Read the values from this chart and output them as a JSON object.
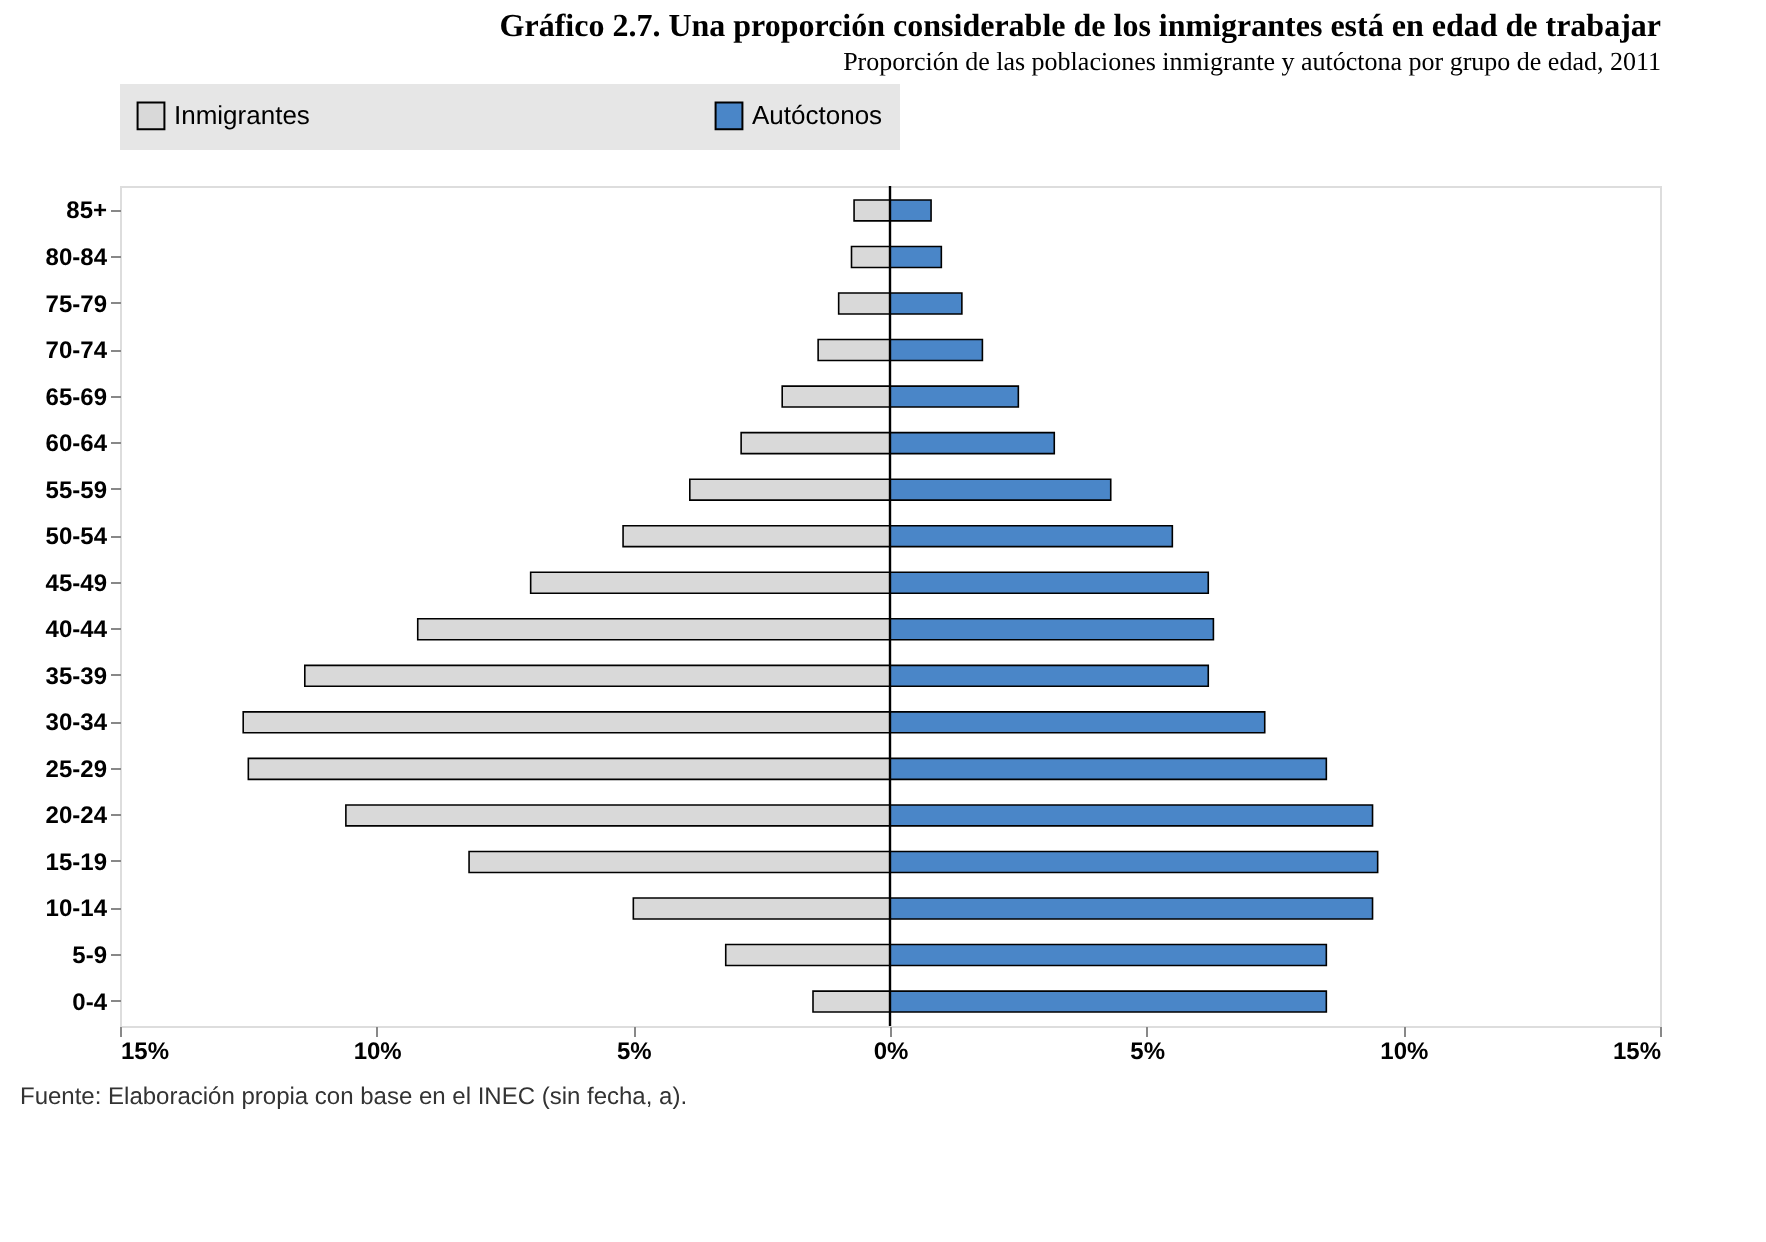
{
  "chart_data": {
    "type": "bar",
    "orientation": "horizontal",
    "stacked": true,
    "title": "Gráfico 2.7. Una proporción considerable de los inmigrantes está en edad de trabajar",
    "subtitle": "Proporción de las poblaciones inmigrante y autóctona por grupo de edad, 2011",
    "categories": [
      "85+",
      "80-84",
      "75-79",
      "70-74",
      "65-69",
      "60-64",
      "55-59",
      "50-54",
      "45-49",
      "40-44",
      "35-39",
      "30-34",
      "25-29",
      "20-24",
      "15-19",
      "10-14",
      "5-9",
      "0-4"
    ],
    "series": [
      {
        "name": "Inmigrantes",
        "color": "#d9d9d9",
        "values": [
          -0.7,
          -0.75,
          -1.0,
          -1.4,
          -2.1,
          -2.9,
          -3.9,
          -5.2,
          -7.0,
          -9.2,
          -11.4,
          -12.6,
          -12.5,
          -10.6,
          -8.2,
          -5.0,
          -3.2,
          -1.5
        ]
      },
      {
        "name": "Autóctonos",
        "color": "#4a86c8",
        "values": [
          0.8,
          1.0,
          1.4,
          1.8,
          2.5,
          3.2,
          4.3,
          5.5,
          6.2,
          6.3,
          6.2,
          7.3,
          8.5,
          9.4,
          9.5,
          9.4,
          8.5,
          8.5
        ]
      }
    ],
    "xlim": [
      -15,
      15
    ],
    "xticks": [
      {
        "value": -15,
        "label": "15%"
      },
      {
        "value": -10,
        "label": "10%"
      },
      {
        "value": -5,
        "label": "5%"
      },
      {
        "value": 0,
        "label": "0%"
      },
      {
        "value": 5,
        "label": "5%"
      },
      {
        "value": 10,
        "label": "10%"
      },
      {
        "value": 15,
        "label": "15%"
      }
    ],
    "ref_lines": [
      {
        "axis": "x",
        "value": 0,
        "color": "#000000"
      }
    ],
    "legend": "top",
    "grid": false,
    "annotations": [
      "Fuente: Elaboración propia con base en el INEC (sin fecha, a)."
    ]
  }
}
